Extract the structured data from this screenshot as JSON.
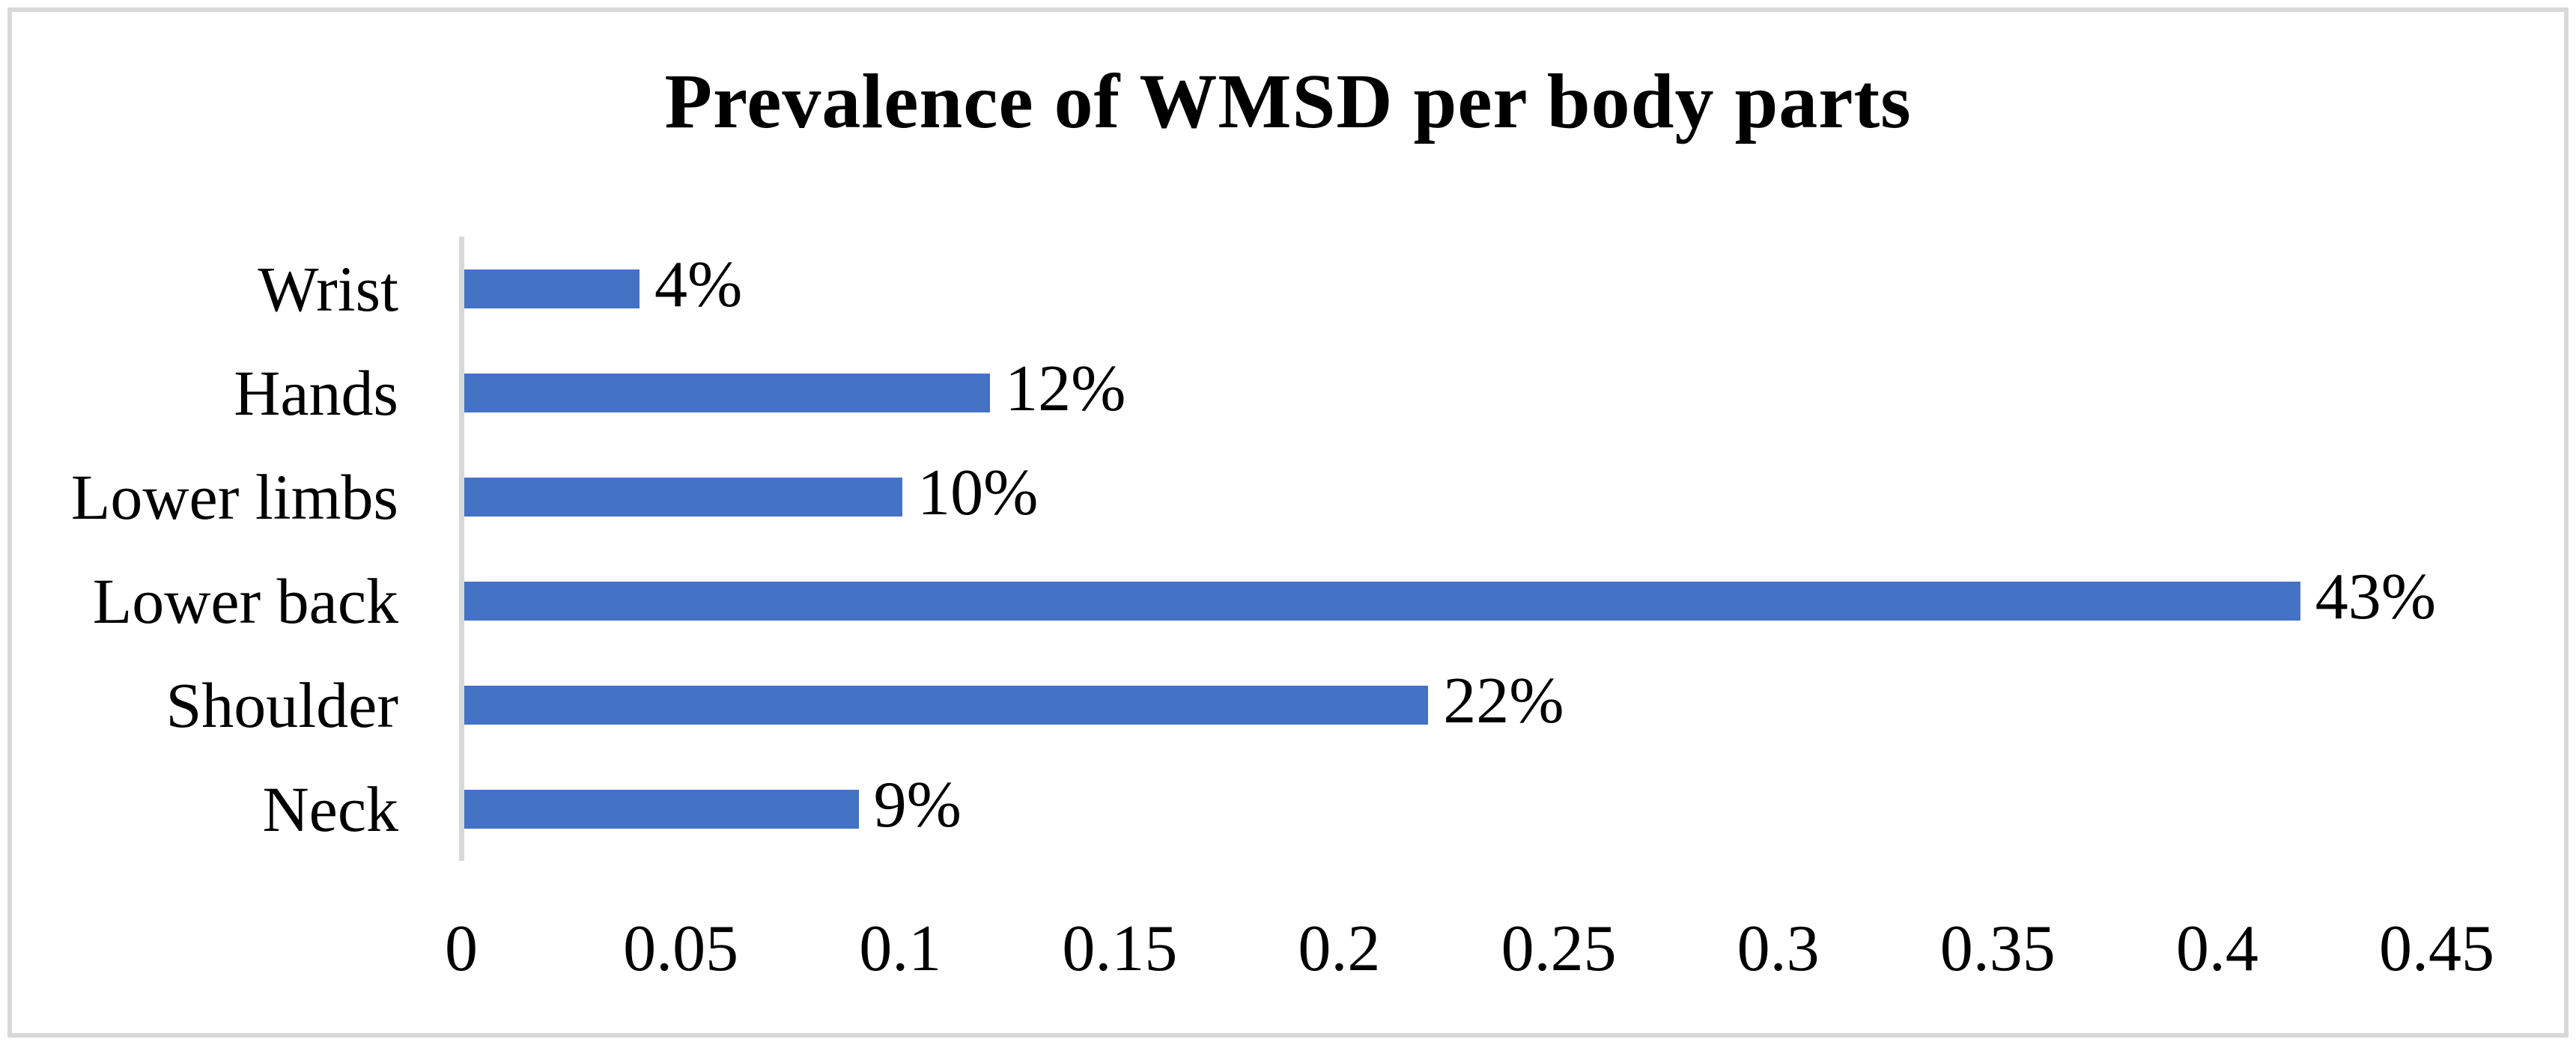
{
  "chart_data": {
    "type": "bar",
    "orientation": "horizontal",
    "title": "Prevalence of WMSD per body parts",
    "categories": [
      "Wrist",
      "Hands",
      "Lower limbs",
      "Lower back",
      "Shoulder",
      "Neck"
    ],
    "values": [
      0.04,
      0.12,
      0.1,
      0.43,
      0.22,
      0.09
    ],
    "data_labels": [
      "4%",
      "12%",
      "10%",
      "43%",
      "22%",
      "9%"
    ],
    "xlabel": "",
    "ylabel": "",
    "xlim": [
      0,
      0.45
    ],
    "xticks": [
      "0",
      "0.05",
      "0.1",
      "0.15",
      "0.2",
      "0.25",
      "0.3",
      "0.35",
      "0.4",
      "0.45"
    ],
    "grid": false,
    "legend_position": "none",
    "bar_color": "#4472C4",
    "axis_color": "#D9D9D9",
    "frame_color": "#D9D9D9",
    "background_color": "#FFFFFF"
  }
}
